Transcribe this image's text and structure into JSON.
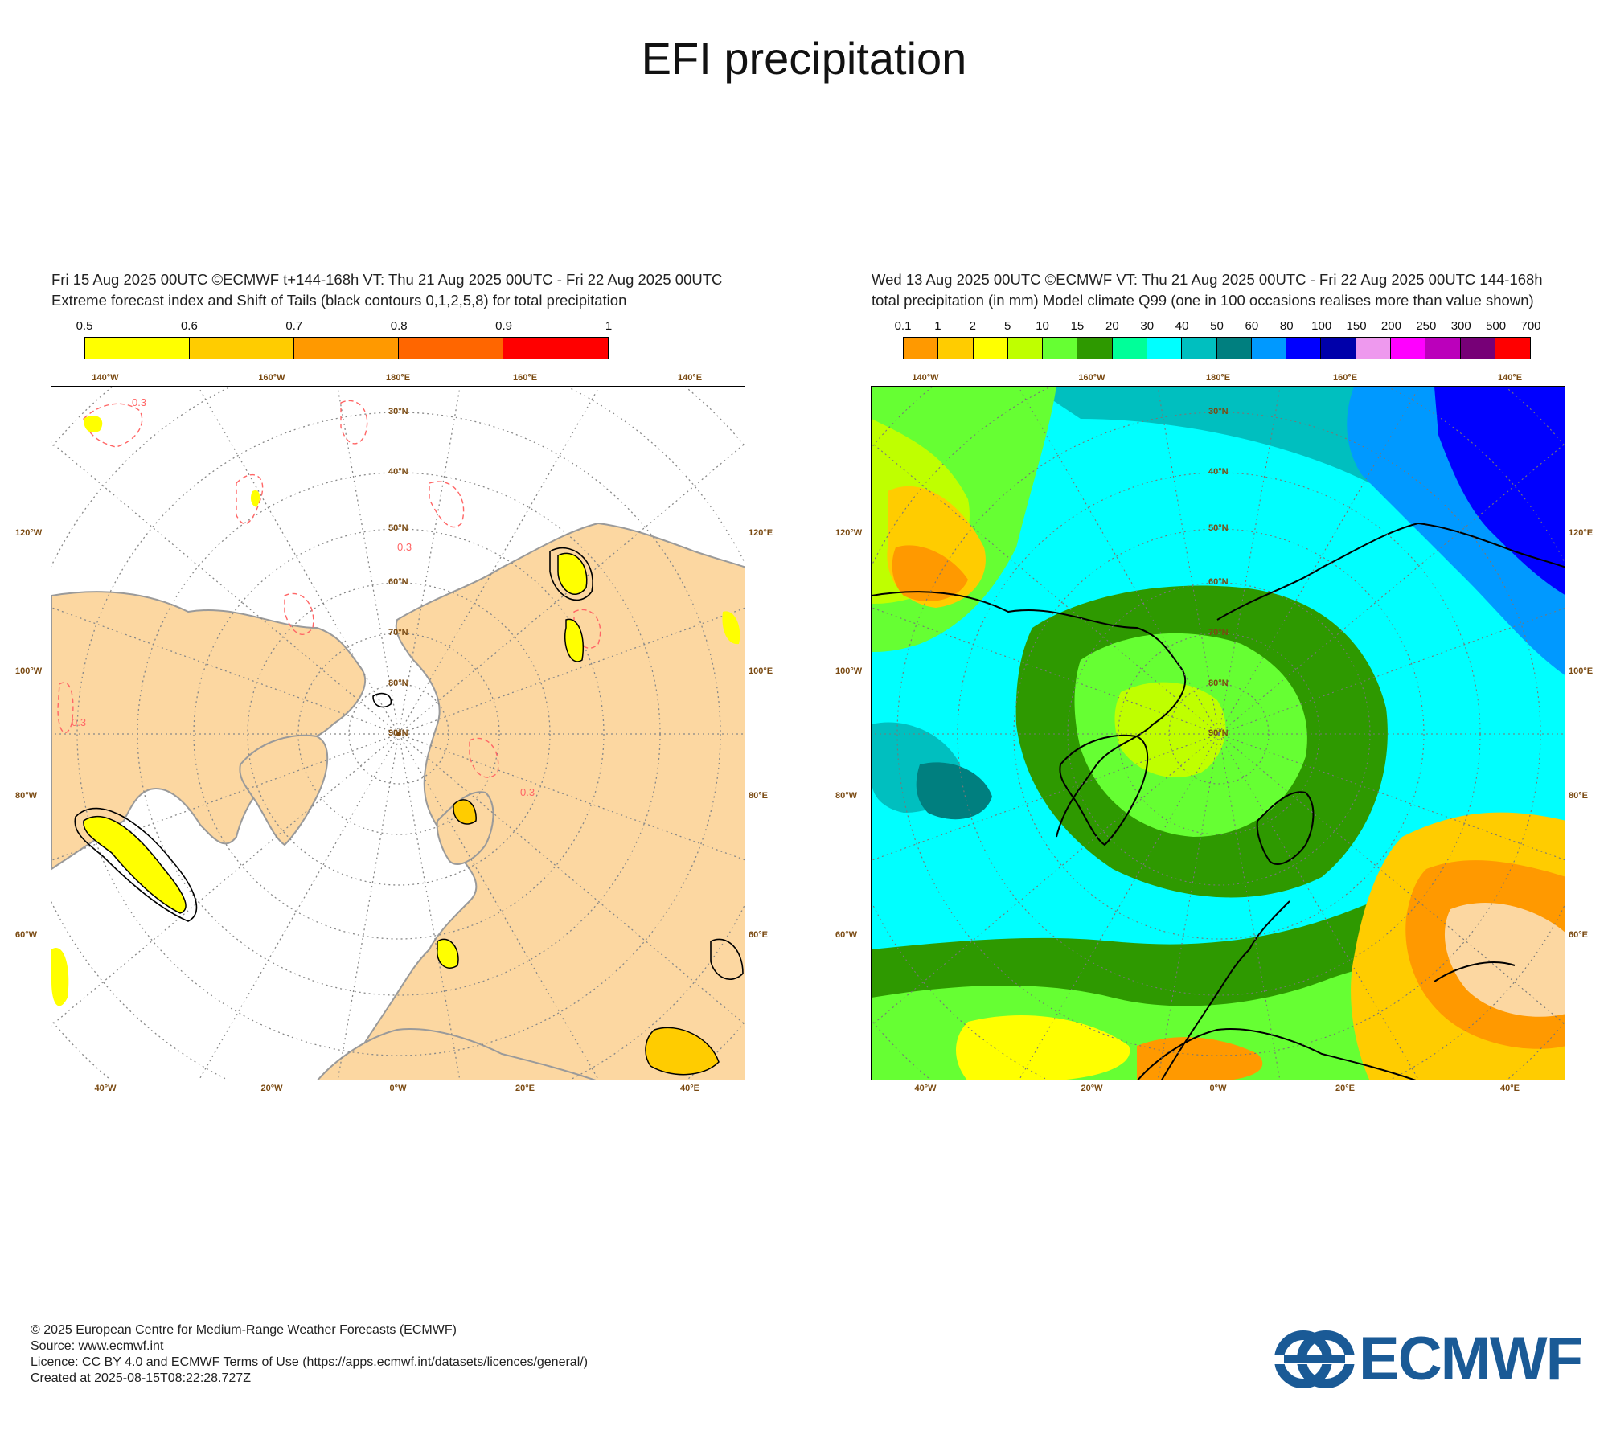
{
  "title": "EFI precipitation",
  "left_panel": {
    "line1": "Fri 15 Aug 2025 00UTC ©ECMWF t+144-168h  VT: Thu 21 Aug 2025 00UTC - Fri 22 Aug 2025 00UTC",
    "line2": "Extreme forecast index and Shift of Tails (black contours 0,1,2,5,8) for total precipitation",
    "legend_ticks": [
      "0.5",
      "0.6",
      "0.7",
      "0.8",
      "0.9",
      "1"
    ],
    "legend_colors": [
      "#ffff00",
      "#ffcc00",
      "#ff9900",
      "#ff6600",
      "#ff0000"
    ],
    "map_colors": {
      "land": "#fcd7a1",
      "sea": "#ffffff",
      "coast": "#9a9a9a",
      "efi_contour": "#ff6666",
      "sot_contour": "#000000"
    },
    "contour_labels": [
      "0.3",
      "0.3",
      "0.3",
      "0.3"
    ]
  },
  "right_panel": {
    "line1": "Wed 13 Aug 2025 00UTC ©ECMWF VT: Thu 21 Aug 2025 00UTC - Fri 22 Aug 2025 00UTC   144-168h",
    "line2": "total precipitation (in mm)  Model climate Q99 (one in 100 occasions realises more than value shown)",
    "legend_ticks": [
      "0.1",
      "1",
      "2",
      "5",
      "10",
      "15",
      "20",
      "30",
      "40",
      "50",
      "60",
      "80",
      "100",
      "150",
      "200",
      "250",
      "300",
      "500",
      "700"
    ],
    "legend_colors": [
      "#ff9900",
      "#ffcc00",
      "#ffff00",
      "#bfff00",
      "#66ff33",
      "#2e9900",
      "#00ff99",
      "#00ffff",
      "#00bfbf",
      "#007f7f",
      "#0099ff",
      "#0000ff",
      "#0000aa",
      "#ee99ee",
      "#ff00ff",
      "#bb00bb",
      "#770077",
      "#ff0000"
    ]
  },
  "grid_labels": {
    "top_lon": [
      "140°W",
      "160°W",
      "180°E",
      "160°E",
      "140°E"
    ],
    "bottom_lon": [
      "40°W",
      "20°W",
      "0°W",
      "20°E",
      "40°E"
    ],
    "left_lon": [
      "120°W",
      "100°W",
      "80°W",
      "60°W"
    ],
    "right_lon": [
      "120°E",
      "100°E",
      "80°E",
      "60°E"
    ],
    "lat": [
      "30°N",
      "40°N",
      "50°N",
      "60°N",
      "70°N",
      "80°N",
      "90°N"
    ]
  },
  "footer": {
    "line1": "© 2025 European Centre for Medium-Range Weather Forecasts (ECMWF)",
    "line2": "Source: www.ecmwf.int",
    "line3": "Licence: CC BY 4.0 and ECMWF Terms of Use (https://apps.ecmwf.int/datasets/licences/general/)",
    "line4": "Created at 2025-08-15T08:22:28.727Z"
  },
  "logo": {
    "text": "ECMWF",
    "color": "#1a5a96"
  }
}
